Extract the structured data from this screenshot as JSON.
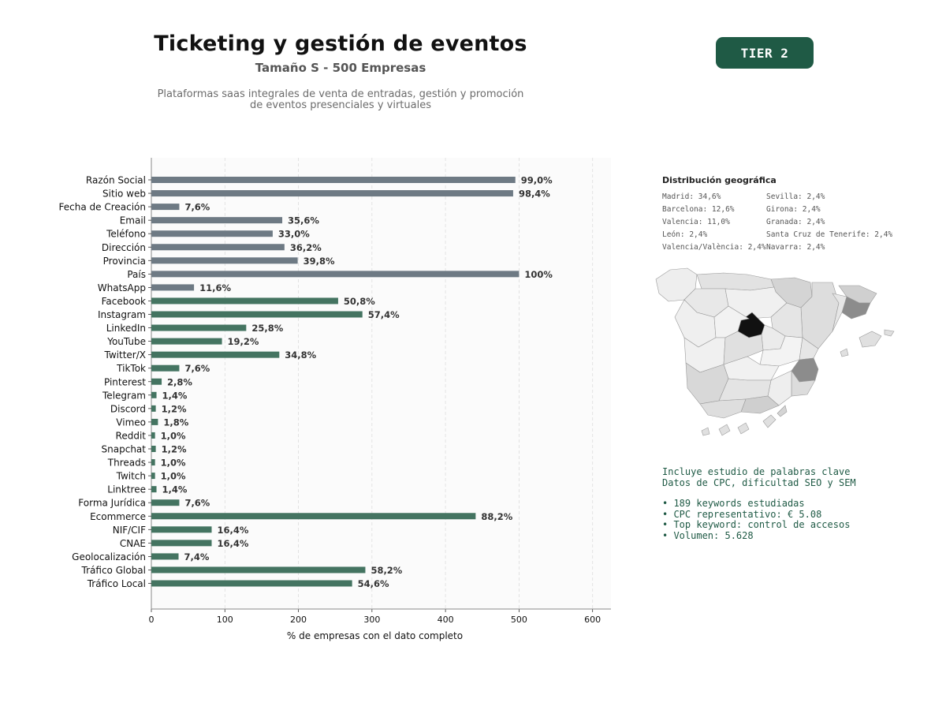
{
  "header": {
    "title": "Ticketing y gestión de eventos",
    "subtitle": "Tamaño S - 500 Empresas",
    "description_line1": "Plataformas saas integrales de venta de entradas, gestión y promoción",
    "description_line2": "de eventos presenciales y virtuales"
  },
  "badge": {
    "label": "TIER 2",
    "color": "#1f5a45"
  },
  "chart_data": {
    "type": "bar",
    "orientation": "horizontal",
    "xlabel": "% de empresas con el dato completo",
    "xlim": [
      0,
      625
    ],
    "xticks": [
      0,
      100,
      200,
      300,
      400,
      500,
      600
    ],
    "grid": "vertical dashed",
    "colors": {
      "contact": "#6e7a84",
      "social": "#447461"
    },
    "categories": [
      "Razón Social",
      "Sitio web",
      "Fecha de Creación",
      "Email",
      "Teléfono",
      "Dirección",
      "Provincia",
      "País",
      "WhatsApp",
      "Facebook",
      "Instagram",
      "LinkedIn",
      "YouTube",
      "Twitter/X",
      "TikTok",
      "Pinterest",
      "Telegram",
      "Discord",
      "Vimeo",
      "Reddit",
      "Snapchat",
      "Threads",
      "Twitch",
      "Linktree",
      "Forma Jurídica",
      "Ecommerce",
      "NIF/CIF",
      "CNAE",
      "Geolocalización",
      "Tráfico Global",
      "Tráfico Local"
    ],
    "values": [
      495,
      492,
      38,
      178,
      165,
      181,
      199,
      500,
      58,
      254,
      287,
      129,
      96,
      174,
      38,
      14,
      7,
      6,
      9,
      5,
      6,
      5,
      5,
      7,
      38,
      441,
      82,
      82,
      37,
      291,
      273
    ],
    "labels": [
      "99,0%",
      "98,4%",
      "7,6%",
      "35,6%",
      "33,0%",
      "36,2%",
      "39,8%",
      "100%",
      "11,6%",
      "50,8%",
      "57,4%",
      "25,8%",
      "19,2%",
      "34,8%",
      "7,6%",
      "2,8%",
      "1,4%",
      "1,2%",
      "1,8%",
      "1,0%",
      "1,2%",
      "1,0%",
      "1,0%",
      "1,4%",
      "7,6%",
      "88,2%",
      "16,4%",
      "16,4%",
      "7,4%",
      "58,2%",
      "54,6%"
    ],
    "group": [
      "contact",
      "contact",
      "contact",
      "contact",
      "contact",
      "contact",
      "contact",
      "contact",
      "contact",
      "social",
      "social",
      "social",
      "social",
      "social",
      "social",
      "social",
      "social",
      "social",
      "social",
      "social",
      "social",
      "social",
      "social",
      "social",
      "social",
      "social",
      "social",
      "social",
      "social",
      "social",
      "social"
    ]
  },
  "geo": {
    "title": "Distribución geográfica",
    "items": [
      "Madrid: 34,6%",
      "Sevilla: 2,4%",
      "Barcelona: 12,6%",
      "Girona: 2,4%",
      "Valencia: 11,0%",
      "Granada: 2,4%",
      "León: 2,4%",
      "Santa Cruz de Tenerife: 2,4%",
      "Valencia/València: 2,4%",
      "Navarra: 2,4%"
    ],
    "map_colors": {
      "madrid": "#111111",
      "high": "#8c8c8c",
      "mid": "#d6d6d6",
      "low": "#eeeeee",
      "border": "#999999"
    }
  },
  "keywords": {
    "line1": "Incluye estudio de palabras clave",
    "line2": "Datos de CPC, dificultad SEO y SEM",
    "bullets": [
      "• 189 keywords estudiadas",
      "• CPC representativo: € 5.08",
      "• Top keyword: control de accesos",
      "• Volumen: 5.628"
    ]
  }
}
